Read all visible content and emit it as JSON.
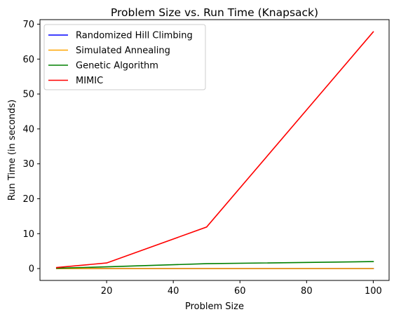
{
  "chart_data": {
    "type": "line",
    "title": "Problem Size vs. Run Time (Knapsack)",
    "xlabel": "Problem Size",
    "ylabel": "Run Time (in seconds)",
    "xlim": [
      0,
      104.75
    ],
    "ylim": [
      -3.4,
      71.3
    ],
    "xticks": [
      20,
      40,
      60,
      80,
      100
    ],
    "yticks": [
      0,
      10,
      20,
      30,
      40,
      50,
      60,
      70
    ],
    "x": [
      5,
      20,
      50,
      100
    ],
    "grid": false,
    "legend_position": "top-left",
    "series": [
      {
        "name": "Randomized Hill Climbing",
        "color": "#0000ff",
        "values": [
          0.0,
          0.0,
          0.0,
          0.0
        ]
      },
      {
        "name": "Simulated Annealing",
        "color": "#ffa500",
        "values": [
          0.0,
          0.0,
          0.0,
          0.0
        ]
      },
      {
        "name": "Genetic Algorithm",
        "color": "#008000",
        "values": [
          0.1,
          0.5,
          1.4,
          2.0
        ]
      },
      {
        "name": "MIMIC",
        "color": "#ff0000",
        "values": [
          0.3,
          1.6,
          11.9,
          67.8
        ]
      }
    ]
  }
}
